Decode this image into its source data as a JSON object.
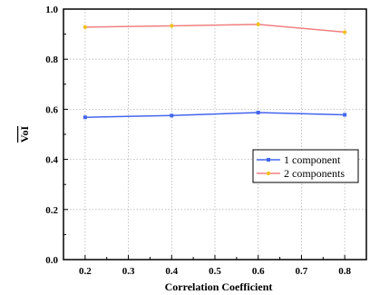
{
  "chart_data": {
    "type": "line",
    "xlabel": "Correlation Coefficient",
    "ylabel": "VoI",
    "xlim": [
      0.15,
      0.85
    ],
    "ylim": [
      0.0,
      1.0
    ],
    "x_ticks": [
      0.2,
      0.3,
      0.4,
      0.5,
      0.6,
      0.7,
      0.8
    ],
    "x_tick_labels": [
      "0.2",
      "0.3",
      "0.4",
      "0.5",
      "0.6",
      "0.7",
      "0.8"
    ],
    "y_ticks": [
      0.0,
      0.2,
      0.4,
      0.6,
      0.8,
      1.0
    ],
    "y_tick_labels": [
      "0.0",
      "0.2",
      "0.4",
      "0.6",
      "0.8",
      "1.0"
    ],
    "grid": true,
    "legend_position": "center-right",
    "series": [
      {
        "name": "1 component",
        "x": [
          0.2,
          0.4,
          0.6,
          0.8
        ],
        "values": [
          0.568,
          0.575,
          0.587,
          0.578
        ],
        "color": "#4466ee",
        "marker": "square"
      },
      {
        "name": "2 components",
        "x": [
          0.2,
          0.4,
          0.6,
          0.8
        ],
        "values": [
          0.928,
          0.933,
          0.939,
          0.908
        ],
        "color": "#f08080",
        "marker": "circle",
        "marker_color": "#f0c020"
      }
    ]
  }
}
